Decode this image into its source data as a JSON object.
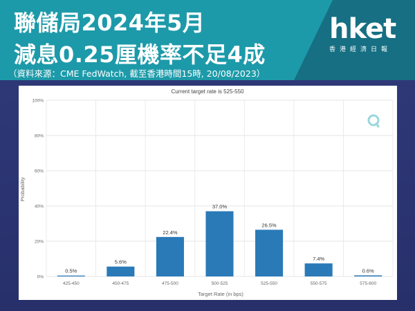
{
  "header": {
    "title_line1": "聯儲局2024年5月",
    "title_line2": "減息0.25厘機率不足4成",
    "source": "（資料來源：CME FedWatch, 截至香港時間15時, 20/08/2023）"
  },
  "logo": {
    "text": "hket",
    "subtitle": "香港經濟日報",
    "icon": "hket-logo"
  },
  "chart_data": {
    "type": "bar",
    "title": "Current target rate is 525-550",
    "xlabel": "Target Rate (in bps)",
    "ylabel": "Probability",
    "categories": [
      "425-450",
      "450-475",
      "475-500",
      "500-525",
      "525-550",
      "550-575",
      "575-600"
    ],
    "values": [
      0.5,
      5.6,
      22.4,
      37.0,
      26.5,
      7.4,
      0.6
    ],
    "value_labels": [
      "0.5%",
      "5.6%",
      "22.4%",
      "37.0%",
      "26.5%",
      "7.4%",
      "0.6%"
    ],
    "ylim": [
      0,
      100
    ],
    "yticks": [
      "0%",
      "20%",
      "40%",
      "60%",
      "80%",
      "100%"
    ],
    "grid": true,
    "bar_color": "#2a7ab8",
    "watermark_icon": "cme-q-icon"
  }
}
